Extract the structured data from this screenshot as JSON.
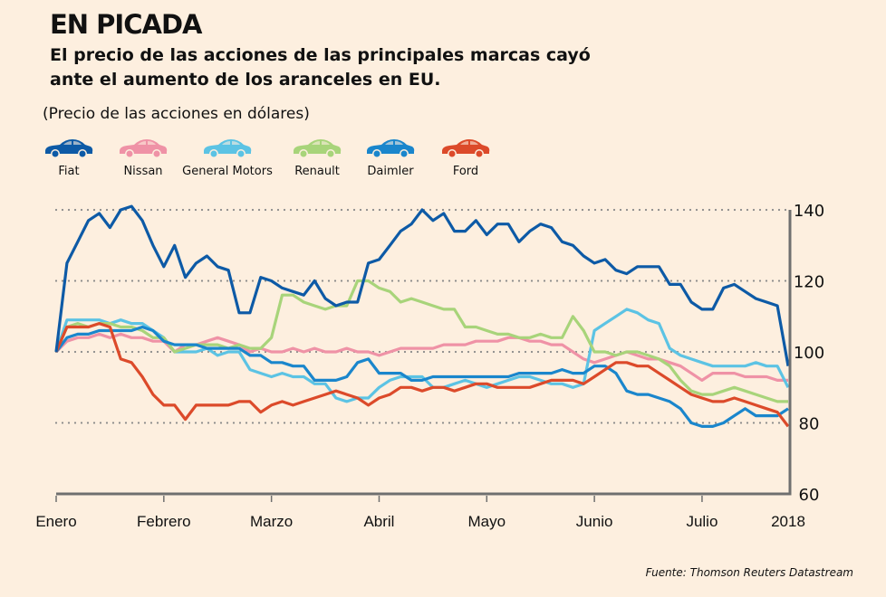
{
  "header": {
    "title": "EN PICADA",
    "subtitle": "El precio de las acciones de las principales marcas cayó ante el aumento de los aranceles en EU.",
    "unit_note": "(Precio de las acciones en dólares)"
  },
  "legend": [
    {
      "name": "Fiat",
      "color": "#0d5aa6",
      "icon": "car-icon"
    },
    {
      "name": "Nissan",
      "color": "#ef92a6",
      "icon": "car-icon"
    },
    {
      "name": "General Motors",
      "color": "#5cc3e4",
      "icon": "car-icon"
    },
    {
      "name": "Renault",
      "color": "#a8d47a",
      "icon": "car-icon"
    },
    {
      "name": "Daimler",
      "color": "#1a86cc",
      "icon": "car-icon"
    },
    {
      "name": "Ford",
      "color": "#dc4a2a",
      "icon": "car-icon"
    }
  ],
  "source": "Fuente: Thomson Reuters Datastream",
  "chart_data": {
    "type": "line",
    "title": "EN PICADA",
    "ylabel": "Precio de las acciones en dólares",
    "xlabel": "",
    "ylim": [
      60,
      140
    ],
    "yticks": [
      60,
      80,
      100,
      120,
      140
    ],
    "grid": "dotted horizontal at 80, 100, 120, 140",
    "y_axis_side": "right",
    "x_tick_labels": [
      "Enero",
      "Febrero",
      "Marzo",
      "Abril",
      "Mayo",
      "Junio",
      "Julio",
      "2018"
    ],
    "x_tick_positions": [
      0,
      1,
      2,
      3,
      4,
      5,
      6,
      6.8
    ],
    "x": [
      0,
      0.1,
      0.2,
      0.3,
      0.4,
      0.5,
      0.6,
      0.7,
      0.8,
      0.9,
      1.0,
      1.1,
      1.2,
      1.3,
      1.4,
      1.5,
      1.6,
      1.7,
      1.8,
      1.9,
      2.0,
      2.1,
      2.2,
      2.3,
      2.4,
      2.5,
      2.6,
      2.7,
      2.8,
      2.9,
      3.0,
      3.1,
      3.2,
      3.3,
      3.4,
      3.5,
      3.6,
      3.7,
      3.8,
      3.9,
      4.0,
      4.1,
      4.2,
      4.3,
      4.4,
      4.5,
      4.6,
      4.7,
      4.8,
      4.9,
      5.0,
      5.1,
      5.2,
      5.3,
      5.4,
      5.5,
      5.6,
      5.7,
      5.8,
      5.9,
      6.0,
      6.1,
      6.2,
      6.3,
      6.4,
      6.5,
      6.6,
      6.7,
      6.8
    ],
    "series": [
      {
        "name": "Fiat",
        "values": [
          100,
          125,
          131,
          137,
          139,
          135,
          140,
          141,
          137,
          130,
          124,
          130,
          121,
          125,
          127,
          124,
          123,
          111,
          111,
          121,
          120,
          118,
          117,
          116,
          120,
          115,
          113,
          114,
          114,
          125,
          126,
          130,
          134,
          136,
          140,
          137,
          139,
          134,
          134,
          137,
          133,
          136,
          136,
          131,
          134,
          136,
          135,
          131,
          130,
          127,
          125,
          126,
          123,
          122,
          124,
          124,
          124,
          119,
          119,
          114,
          112,
          112,
          118,
          119,
          117,
          115,
          114,
          113,
          96
        ]
      },
      {
        "name": "Nissan",
        "values": [
          100,
          103,
          104,
          104,
          105,
          104,
          105,
          104,
          104,
          103,
          103,
          100,
          102,
          102,
          103,
          104,
          103,
          102,
          100,
          101,
          100,
          100,
          101,
          100,
          101,
          100,
          100,
          101,
          100,
          100,
          99,
          100,
          101,
          101,
          101,
          101,
          102,
          102,
          102,
          103,
          103,
          103,
          104,
          104,
          103,
          103,
          102,
          102,
          100,
          98,
          97,
          98,
          99,
          100,
          99,
          98,
          98,
          97,
          96,
          94,
          92,
          94,
          94,
          94,
          93,
          93,
          93,
          92,
          92
        ]
      },
      {
        "name": "General Motors",
        "values": [
          100,
          109,
          109,
          109,
          109,
          108,
          109,
          108,
          108,
          106,
          104,
          100,
          100,
          100,
          101,
          99,
          100,
          100,
          95,
          94,
          93,
          94,
          93,
          93,
          91,
          91,
          87,
          86,
          87,
          87,
          90,
          92,
          93,
          93,
          93,
          90,
          90,
          91,
          92,
          91,
          90,
          91,
          92,
          93,
          93,
          92,
          91,
          91,
          90,
          91,
          106,
          108,
          110,
          112,
          111,
          109,
          108,
          101,
          99,
          98,
          97,
          96,
          96,
          96,
          96,
          97,
          96,
          96,
          90
        ]
      },
      {
        "name": "Renault",
        "values": [
          100,
          107,
          108,
          107,
          108,
          108,
          107,
          107,
          106,
          104,
          104,
          100,
          101,
          102,
          102,
          102,
          101,
          102,
          101,
          101,
          104,
          116,
          116,
          114,
          113,
          112,
          113,
          113,
          120,
          120,
          118,
          117,
          114,
          115,
          114,
          113,
          112,
          112,
          107,
          107,
          106,
          105,
          105,
          104,
          104,
          105,
          104,
          104,
          110,
          106,
          100,
          100,
          99,
          100,
          100,
          99,
          98,
          96,
          92,
          89,
          88,
          88,
          89,
          90,
          89,
          88,
          87,
          86,
          86
        ]
      },
      {
        "name": "Daimler",
        "values": [
          100,
          104,
          105,
          105,
          106,
          106,
          106,
          106,
          107,
          106,
          103,
          102,
          102,
          102,
          101,
          101,
          101,
          101,
          99,
          99,
          97,
          97,
          96,
          96,
          92,
          92,
          92,
          93,
          97,
          98,
          94,
          94,
          94,
          92,
          92,
          93,
          93,
          93,
          93,
          93,
          93,
          93,
          93,
          94,
          94,
          94,
          94,
          95,
          94,
          94,
          96,
          96,
          94,
          89,
          88,
          88,
          87,
          86,
          84,
          80,
          79,
          79,
          80,
          82,
          84,
          82,
          82,
          82,
          84
        ]
      },
      {
        "name": "Ford",
        "values": [
          100,
          107,
          107,
          107,
          108,
          107,
          98,
          97,
          93,
          88,
          85,
          85,
          81,
          85,
          85,
          85,
          85,
          86,
          86,
          83,
          85,
          86,
          85,
          86,
          87,
          88,
          89,
          88,
          87,
          85,
          87,
          88,
          90,
          90,
          89,
          90,
          90,
          89,
          90,
          91,
          91,
          90,
          90,
          90,
          90,
          91,
          92,
          92,
          92,
          91,
          93,
          95,
          97,
          97,
          96,
          96,
          94,
          92,
          90,
          88,
          87,
          86,
          86,
          87,
          86,
          85,
          84,
          83,
          79
        ]
      }
    ]
  }
}
